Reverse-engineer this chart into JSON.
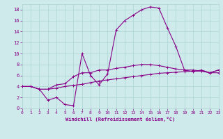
{
  "xlabel": "Windchill (Refroidissement éolien,°C)",
  "background_color": "#ceeaea",
  "grid_color": "#b0d8d8",
  "line_color": "#880088",
  "xlim": [
    0,
    23
  ],
  "ylim": [
    0,
    19
  ],
  "xticks": [
    0,
    1,
    2,
    3,
    4,
    5,
    6,
    7,
    8,
    9,
    10,
    11,
    12,
    13,
    14,
    15,
    16,
    17,
    18,
    19,
    20,
    21,
    22,
    23
  ],
  "yticks": [
    0,
    2,
    4,
    6,
    8,
    10,
    12,
    14,
    16,
    18
  ],
  "line_peak_x": [
    0,
    1,
    2,
    3,
    4,
    5,
    6,
    7,
    8,
    9,
    10,
    11,
    12,
    13,
    14,
    15,
    16,
    17,
    18,
    19,
    20,
    21,
    22,
    23
  ],
  "line_peak_y": [
    4.0,
    4.0,
    3.5,
    1.5,
    2.0,
    0.7,
    0.5,
    10.0,
    6.0,
    4.3,
    6.3,
    14.3,
    16.0,
    17.0,
    18.0,
    18.5,
    18.3,
    14.7,
    11.3,
    7.0,
    6.7,
    7.0,
    6.5,
    7.0
  ],
  "line_mid_x": [
    0,
    1,
    2,
    3,
    4,
    5,
    6,
    7,
    8,
    9,
    10,
    11,
    12,
    13,
    14,
    15,
    16,
    17,
    18,
    19,
    20,
    21,
    22,
    23
  ],
  "line_mid_y": [
    4.0,
    4.0,
    3.5,
    3.5,
    4.3,
    4.5,
    5.8,
    6.5,
    6.5,
    7.0,
    7.0,
    7.3,
    7.5,
    7.8,
    8.0,
    8.0,
    7.8,
    7.5,
    7.2,
    7.0,
    7.0,
    6.8,
    6.5,
    7.0
  ],
  "line_low_x": [
    0,
    1,
    2,
    3,
    4,
    5,
    6,
    7,
    8,
    9,
    10,
    11,
    12,
    13,
    14,
    15,
    16,
    17,
    18,
    19,
    20,
    21,
    22,
    23
  ],
  "line_low_y": [
    4.0,
    4.0,
    3.5,
    3.5,
    3.7,
    4.0,
    4.2,
    4.4,
    4.7,
    5.0,
    5.2,
    5.4,
    5.6,
    5.8,
    6.0,
    6.2,
    6.4,
    6.5,
    6.6,
    6.7,
    6.8,
    6.8,
    6.5,
    6.5
  ]
}
